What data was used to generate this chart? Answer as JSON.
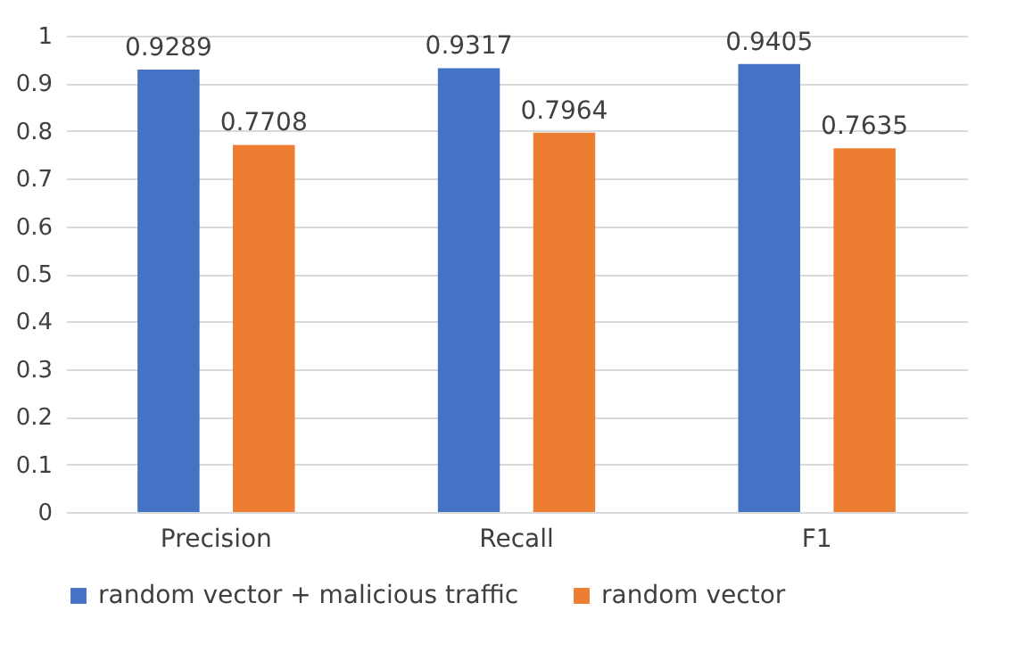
{
  "chart_data": {
    "type": "bar",
    "categories": [
      "Precision",
      "Recall",
      "F1"
    ],
    "series": [
      {
        "name": "random vector + malicious traffic",
        "color": "#4472c4",
        "values": [
          0.9289,
          0.9317,
          0.9405
        ]
      },
      {
        "name": "random vector",
        "color": "#ed7d31",
        "values": [
          0.7708,
          0.7964,
          0.7635
        ]
      }
    ],
    "ylim": [
      0,
      1
    ],
    "yticks": [
      0,
      0.1,
      0.2,
      0.3,
      0.4,
      0.5,
      0.6,
      0.7,
      0.8,
      0.9,
      1
    ],
    "grid": "y",
    "legend": "bottom",
    "data_labels": true
  }
}
